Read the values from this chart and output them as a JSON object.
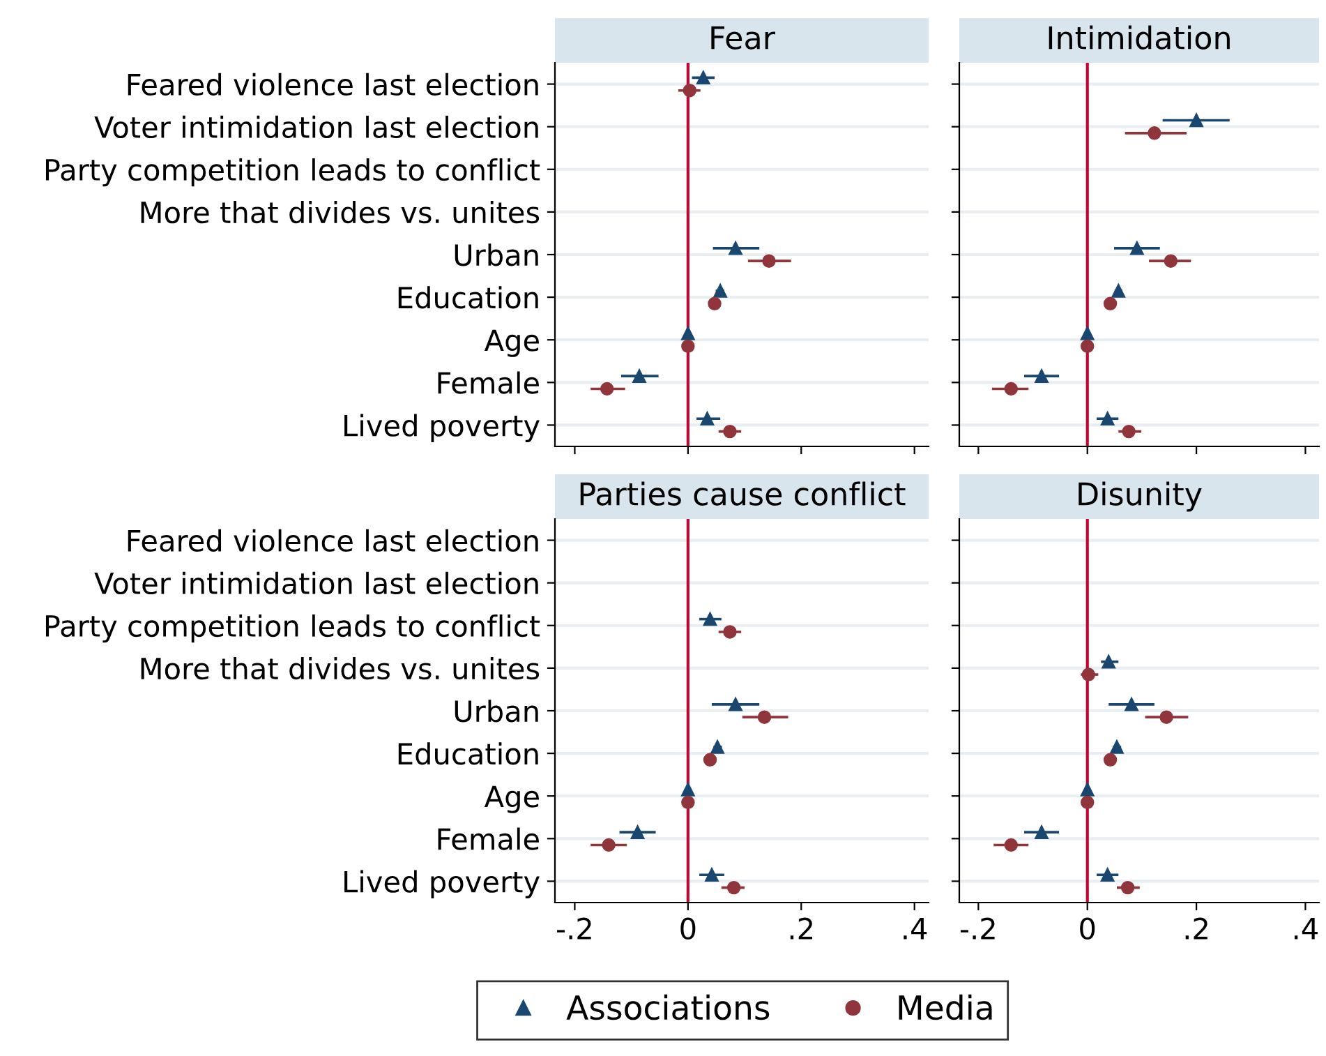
{
  "chart_data": [
    {
      "type": "scatter",
      "orientation": "horizontal",
      "title": "Fear",
      "tick_labels": "y",
      "grid": "y",
      "legend": "bottom",
      "xlim": [
        -0.235,
        0.425
      ],
      "xticks": [
        {
          "value": -0.2,
          "label": null
        },
        {
          "value": 0,
          "label": null
        },
        {
          "value": 0.2,
          "label": null
        },
        {
          "value": 0.4,
          "label": null
        }
      ],
      "categories": [
        "Feared violence last election",
        "Voter intimidation last election",
        "Party competition leads to conflict",
        "More that divides vs. unites",
        "Urban",
        "Education",
        "Age",
        "Female",
        "Lived poverty"
      ],
      "ref_lines": [
        {
          "axis": "x",
          "value": 0,
          "color": "#c10534"
        }
      ],
      "series": [
        {
          "name": "Associations",
          "color": "#1a476f",
          "marker": "triangle",
          "values": [
            0.027,
            null,
            null,
            null,
            0.084,
            0.057,
            0,
            -0.086,
            0.034
          ],
          "errors": [
            [
              0.007,
              0.047
            ],
            null,
            null,
            null,
            [
              0.044,
              0.126
            ],
            [
              0.049,
              0.064
            ],
            null,
            [
              -0.118,
              -0.052
            ],
            [
              0.015,
              0.057
            ]
          ]
        },
        {
          "name": "Media",
          "color": "#90353b",
          "marker": "circle",
          "values": [
            0.003,
            null,
            null,
            null,
            0.143,
            0.047,
            0,
            -0.143,
            0.074
          ],
          "errors": [
            [
              -0.017,
              0.022
            ],
            null,
            null,
            null,
            [
              0.106,
              0.182
            ],
            [
              0.042,
              0.054
            ],
            null,
            [
              -0.172,
              -0.111
            ],
            [
              0.054,
              0.094
            ]
          ]
        }
      ]
    },
    {
      "type": "scatter",
      "orientation": "horizontal",
      "title": "Intimidation",
      "tick_labels": false,
      "grid": "y",
      "xlim": [
        -0.235,
        0.425
      ],
      "xticks": [
        {
          "value": -0.2,
          "label": null
        },
        {
          "value": 0,
          "label": null
        },
        {
          "value": 0.2,
          "label": null
        },
        {
          "value": 0.4,
          "label": null
        }
      ],
      "categories": [
        "Feared violence last election",
        "Voter intimidation last election",
        "Party competition leads to conflict",
        "More that divides vs. unites",
        "Urban",
        "Education",
        "Age",
        "Female",
        "Lived poverty"
      ],
      "ref_lines": [
        {
          "axis": "x",
          "value": 0,
          "color": "#c10534"
        }
      ],
      "series": [
        {
          "name": "Associations",
          "color": "#1a476f",
          "marker": "triangle",
          "values": [
            null,
            0.2,
            null,
            null,
            0.091,
            0.057,
            0,
            -0.084,
            0.037
          ],
          "errors": [
            null,
            [
              0.138,
              0.261
            ],
            null,
            null,
            [
              0.049,
              0.133
            ],
            [
              0.05,
              0.064
            ],
            null,
            [
              -0.116,
              -0.052
            ],
            [
              0.017,
              0.057
            ]
          ]
        },
        {
          "name": "Media",
          "color": "#90353b",
          "marker": "circle",
          "values": [
            null,
            0.123,
            null,
            null,
            0.153,
            0.042,
            0,
            -0.14,
            0.076
          ],
          "errors": [
            null,
            [
              0.069,
              0.182
            ],
            null,
            null,
            [
              0.113,
              0.19
            ],
            [
              0.035,
              0.05
            ],
            null,
            [
              -0.175,
              -0.108
            ],
            [
              0.057,
              0.099
            ]
          ]
        }
      ]
    },
    {
      "type": "scatter",
      "orientation": "horizontal",
      "title": "Parties cause conflict",
      "grid": "y",
      "xlim": [
        -0.235,
        0.425
      ],
      "xticks": [
        {
          "value": -0.2,
          "label": "-.2"
        },
        0,
        {
          "value": 0.2,
          "label": ".2"
        },
        {
          "value": 0.4,
          "label": ".4"
        }
      ],
      "categories": [
        "Feared violence last election",
        "Voter intimidation last election",
        "Party competition leads to conflict",
        "More that divides vs. unites",
        "Urban",
        "Education",
        "Age",
        "Female",
        "Lived poverty"
      ],
      "ref_lines": [
        {
          "axis": "x",
          "value": 0,
          "color": "#c10534"
        }
      ],
      "series": [
        {
          "name": "Associations",
          "color": "#1a476f",
          "marker": "triangle",
          "values": [
            null,
            null,
            0.039,
            null,
            0.084,
            0.052,
            0,
            -0.089,
            0.042
          ],
          "errors": [
            null,
            null,
            [
              0.02,
              0.059
            ],
            null,
            [
              0.042,
              0.126
            ],
            [
              0.045,
              0.06
            ],
            null,
            [
              -0.121,
              -0.057
            ],
            [
              0.02,
              0.064
            ]
          ]
        },
        {
          "name": "Media",
          "color": "#90353b",
          "marker": "circle",
          "values": [
            null,
            null,
            0.074,
            null,
            0.135,
            0.039,
            0,
            -0.14,
            0.081
          ],
          "errors": [
            null,
            null,
            [
              0.054,
              0.094
            ],
            null,
            [
              0.096,
              0.177
            ],
            [
              0.032,
              0.047
            ],
            null,
            [
              -0.172,
              -0.108
            ],
            [
              0.059,
              0.1
            ]
          ]
        }
      ]
    },
    {
      "type": "scatter",
      "orientation": "horizontal",
      "title": "Disunity",
      "tick_labels": "x",
      "grid": "y",
      "xlim": [
        -0.235,
        0.425
      ],
      "xticks": [
        {
          "value": -0.2,
          "label": "-.2"
        },
        0,
        {
          "value": 0.2,
          "label": ".2"
        },
        {
          "value": 0.4,
          "label": ".4"
        }
      ],
      "categories": [
        "Feared violence last election",
        "Voter intimidation last election",
        "Party competition leads to conflict",
        "More that divides vs. unites",
        "Urban",
        "Education",
        "Age",
        "Female",
        "Lived poverty"
      ],
      "ref_lines": [
        {
          "axis": "x",
          "value": 0,
          "color": "#c10534"
        }
      ],
      "series": [
        {
          "name": "Associations",
          "color": "#1a476f",
          "marker": "triangle",
          "values": [
            null,
            null,
            null,
            0.039,
            0.081,
            0.054,
            0,
            -0.084,
            0.037
          ],
          "errors": [
            null,
            null,
            null,
            [
              0.025,
              0.057
            ],
            [
              0.039,
              0.123
            ],
            [
              0.047,
              0.062
            ],
            null,
            [
              -0.116,
              -0.052
            ],
            [
              0.017,
              0.057
            ]
          ]
        },
        {
          "name": "Media",
          "color": "#90353b",
          "marker": "circle",
          "values": [
            null,
            null,
            null,
            0.002,
            0.145,
            0.042,
            0,
            -0.14,
            0.074
          ],
          "errors": [
            null,
            null,
            null,
            [
              -0.012,
              0.02
            ],
            [
              0.106,
              0.185
            ],
            [
              0.035,
              0.05
            ],
            null,
            [
              -0.172,
              -0.108
            ],
            [
              0.054,
              0.096
            ]
          ]
        }
      ]
    }
  ]
}
